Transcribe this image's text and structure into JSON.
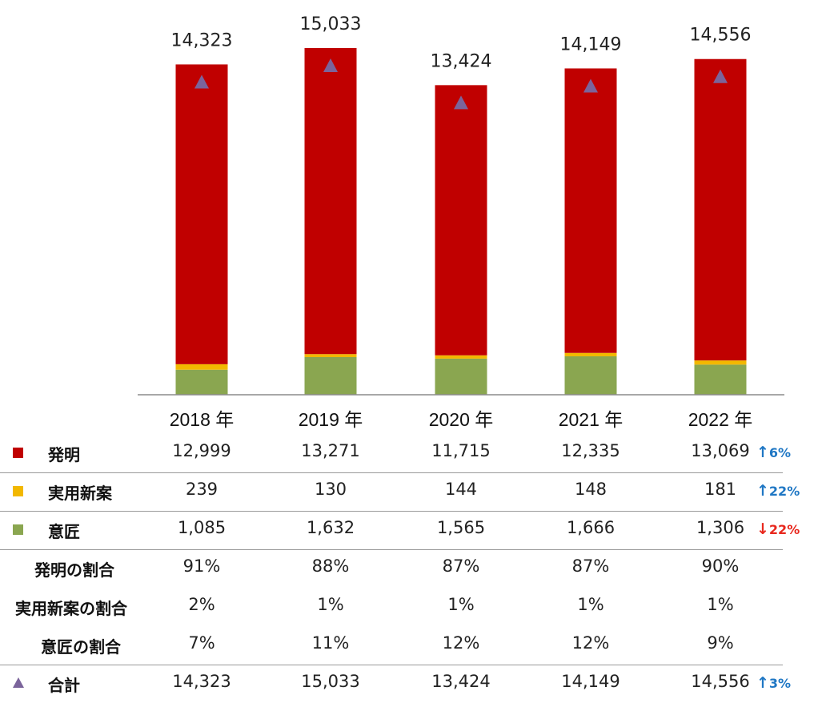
{
  "chart_data": {
    "type": "bar",
    "stacked": true,
    "categories": [
      "2018 年",
      "2019 年",
      "2020 年",
      "2021 年",
      "2022 年"
    ],
    "series": [
      {
        "name": "意匠",
        "color": "#8aa650",
        "values": [
          1085,
          1632,
          1565,
          1666,
          1306
        ]
      },
      {
        "name": "実用新案",
        "color": "#f2b800",
        "values": [
          239,
          130,
          144,
          148,
          181
        ]
      },
      {
        "name": "発明",
        "color": "#c00000",
        "values": [
          12999,
          13271,
          11715,
          12335,
          13069
        ]
      }
    ],
    "totals": {
      "name": "合計",
      "marker": "triangle",
      "color": "#7b649b",
      "values": [
        14323,
        15033,
        13424,
        14149,
        14556
      ]
    },
    "total_labels": [
      "14,323",
      "15,033",
      "13,424",
      "14,149",
      "14,556"
    ],
    "ylim": [
      0,
      15033
    ],
    "grid": false
  },
  "table": {
    "rows": [
      {
        "key": "invention",
        "label": "発明",
        "legend": "square",
        "color": "#c00000",
        "cells": [
          "12,999",
          "13,271",
          "11,715",
          "12,335",
          "13,069"
        ],
        "change": {
          "arrow": "↑",
          "text": "6%",
          "color": "#1f77c4"
        }
      },
      {
        "key": "utility",
        "label": "実用新案",
        "legend": "square",
        "color": "#f2b800",
        "cells": [
          "239",
          "130",
          "144",
          "148",
          "181"
        ],
        "change": {
          "arrow": "↑",
          "text": "22%",
          "color": "#1f77c4"
        }
      },
      {
        "key": "design",
        "label": "意匠",
        "legend": "square",
        "color": "#8aa650",
        "cells": [
          "1,085",
          "1,632",
          "1,565",
          "1,666",
          "1,306"
        ],
        "change": {
          "arrow": "↓",
          "text": "22%",
          "color": "#e8281e"
        }
      },
      {
        "key": "invention-share",
        "label": "発明の割合",
        "legend": "none",
        "cells": [
          "91%",
          "88%",
          "87%",
          "87%",
          "90%"
        ]
      },
      {
        "key": "utility-share",
        "label": "実用新案の割合",
        "legend": "none",
        "cells": [
          "2%",
          "1%",
          "1%",
          "1%",
          "1%"
        ]
      },
      {
        "key": "design-share",
        "label": "意匠の割合",
        "legend": "none",
        "cells": [
          "7%",
          "11%",
          "12%",
          "12%",
          "9%"
        ]
      },
      {
        "key": "total",
        "label": "合計",
        "legend": "triangle",
        "color": "#7b649b",
        "cells": [
          "14,323",
          "15,033",
          "13,424",
          "14,149",
          "14,556"
        ],
        "change": {
          "arrow": "↑",
          "text": "3%",
          "color": "#1f77c4"
        }
      }
    ]
  }
}
